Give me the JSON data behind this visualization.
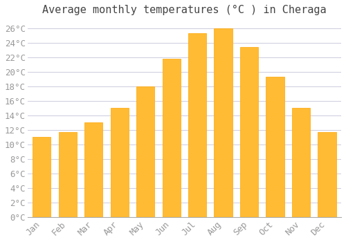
{
  "title": "Average monthly temperatures (°C ) in Cheraga",
  "months": [
    "Jan",
    "Feb",
    "Mar",
    "Apr",
    "May",
    "Jun",
    "Jul",
    "Aug",
    "Sep",
    "Oct",
    "Nov",
    "Dec"
  ],
  "values": [
    11.0,
    11.7,
    13.0,
    15.0,
    18.0,
    21.8,
    25.3,
    26.0,
    23.4,
    19.3,
    15.0,
    11.7
  ],
  "bar_color": "#FFBB33",
  "bar_edge_color": "#FFA500",
  "background_color": "#FFFFFF",
  "plot_bg_color": "#FFFFFF",
  "grid_color": "#CCCCDD",
  "ylim": [
    0,
    27
  ],
  "yticks": [
    0,
    2,
    4,
    6,
    8,
    10,
    12,
    14,
    16,
    18,
    20,
    22,
    24,
    26
  ],
  "title_fontsize": 11,
  "tick_fontsize": 9,
  "tick_font_color": "#999999",
  "title_color": "#444444"
}
